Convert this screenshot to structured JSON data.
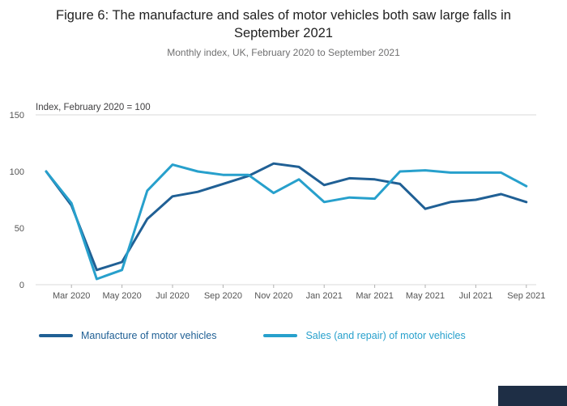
{
  "chart_data": {
    "type": "line",
    "title": "Figure 6: The manufacture and sales of motor vehicles both saw large falls in September 2021",
    "subtitle": "Monthly index, UK, February 2020 to September 2021",
    "annotation": "Index, February 2020 = 100",
    "x": [
      "Feb 2020",
      "Mar 2020",
      "Apr 2020",
      "May 2020",
      "Jun 2020",
      "Jul 2020",
      "Aug 2020",
      "Sep 2020",
      "Oct 2020",
      "Nov 2020",
      "Dec 2020",
      "Jan 2021",
      "Feb 2021",
      "Mar 2021",
      "Apr 2021",
      "May 2021",
      "Jun 2021",
      "Jul 2021",
      "Aug 2021",
      "Sep 2021"
    ],
    "x_tick_labels": [
      "Mar 2020",
      "May 2020",
      "Jul 2020",
      "Sep 2020",
      "Nov 2020",
      "Jan 2021",
      "Mar 2021",
      "May 2021",
      "Jul 2021",
      "Sep 2021"
    ],
    "ylim": [
      0,
      150
    ],
    "yticks": [
      0,
      50,
      100,
      150
    ],
    "grid": "horizontal gridline at 150 and baseline at 0 only",
    "legend_position": "bottom",
    "series": [
      {
        "name": "Manufacture of motor vehicles",
        "color": "#206095",
        "values": [
          100,
          70,
          13,
          20,
          58,
          78,
          82,
          89,
          96,
          107,
          104,
          88,
          94,
          93,
          89,
          67,
          73,
          75,
          80,
          73
        ]
      },
      {
        "name": "Sales (and repair) of motor vehicles",
        "color": "#27A0CC",
        "values": [
          100,
          72,
          5,
          13,
          83,
          106,
          100,
          97,
          97,
          81,
          93,
          73,
          77,
          76,
          100,
          101,
          99,
          99,
          99,
          87
        ]
      }
    ]
  },
  "colors": {
    "grid": "#d9d9d9",
    "tick_mark": "#b0b0b0",
    "logo_block": "#1e2e45"
  }
}
